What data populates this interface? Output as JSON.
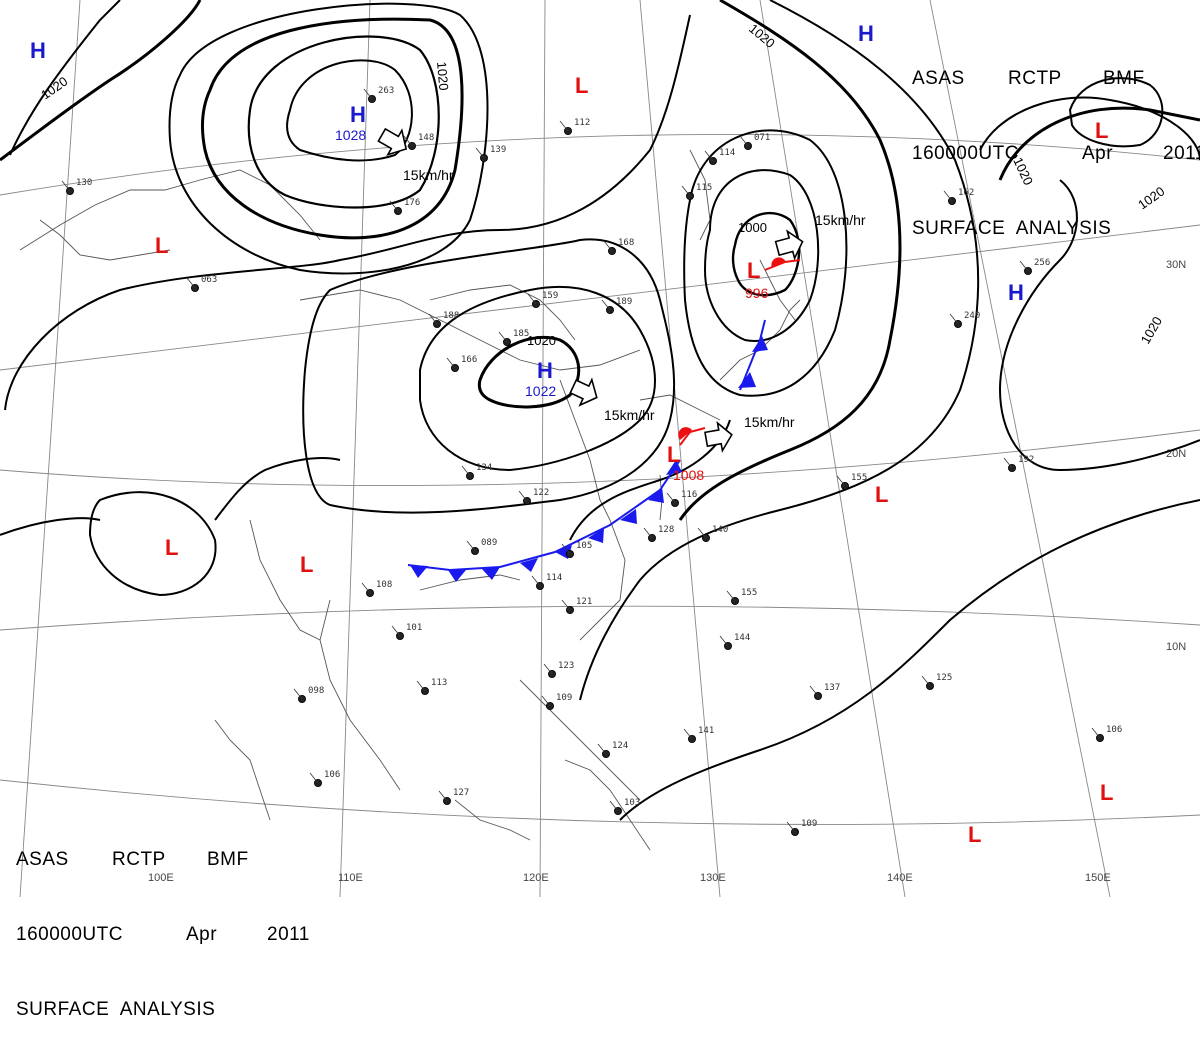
{
  "header": {
    "line1": [
      "ASAS",
      "RCTP",
      "BMF"
    ],
    "line2": [
      "160000UTC",
      "Apr",
      "2011"
    ],
    "line3": "SURFACE  ANALYSIS"
  },
  "grid_labels": {
    "longitude": [
      "100E",
      "110E",
      "120E",
      "130E",
      "140E",
      "150E"
    ],
    "latitude": [
      "30N",
      "20N",
      "10N"
    ]
  },
  "isobar_labels": [
    "1020",
    "1020",
    "1020",
    "1020",
    "1020",
    "1020",
    "1000"
  ],
  "pressure_centers": [
    {
      "type": "H",
      "value": ""
    },
    {
      "type": "H",
      "value": "1028"
    },
    {
      "type": "H",
      "value": "1022"
    },
    {
      "type": "H",
      "value": ""
    },
    {
      "type": "H",
      "value": ""
    },
    {
      "type": "L",
      "value": ""
    },
    {
      "type": "L",
      "value": ""
    },
    {
      "type": "L",
      "value": ""
    },
    {
      "type": "L",
      "value": ""
    },
    {
      "type": "L",
      "value": "996"
    },
    {
      "type": "L",
      "value": "1008"
    },
    {
      "type": "L",
      "value": ""
    },
    {
      "type": "L",
      "value": ""
    },
    {
      "type": "L",
      "value": ""
    },
    {
      "type": "L",
      "value": ""
    }
  ],
  "movement_labels": [
    "15km/hr",
    "15km/hr",
    "15km/hr",
    "15km/hr"
  ],
  "station_values": [
    "263",
    "148",
    "139",
    "176",
    "114",
    "071",
    "115",
    "130",
    "063",
    "112",
    "188",
    "185",
    "166",
    "159",
    "189",
    "168",
    "134",
    "122",
    "089",
    "105",
    "108",
    "101",
    "113",
    "098",
    "106",
    "127",
    "123",
    "109",
    "124",
    "103",
    "141",
    "144",
    "155",
    "137",
    "125",
    "106",
    "109",
    "192",
    "155",
    "240",
    "256",
    "116",
    "140",
    "128",
    "114",
    "121",
    "162"
  ],
  "colors": {
    "isobar": "#000000",
    "high": "#1a1acc",
    "low": "#e01010",
    "cold_front": "#1a1aee",
    "warm_front": "#ee1010",
    "grid": "#777777",
    "coast": "#555555"
  }
}
